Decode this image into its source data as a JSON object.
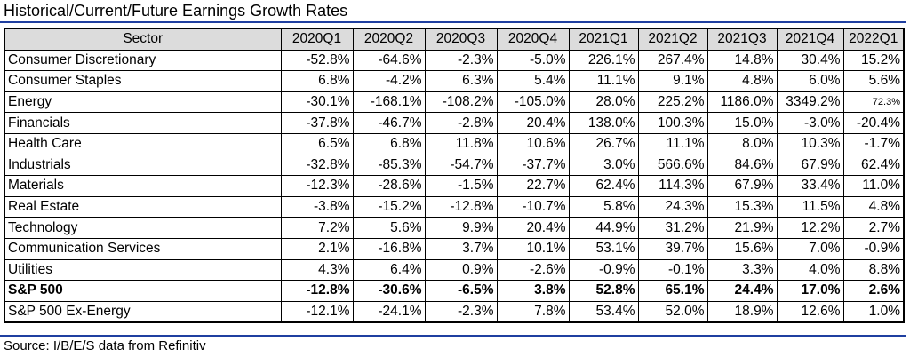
{
  "title": "Historical/Current/Future Earnings Growth Rates",
  "source": "Source: I/B/E/S data from Refinitiv",
  "colors": {
    "rule": "#1f3fa0",
    "header_bg": "#dcdcdc"
  },
  "table": {
    "columns": [
      "Sector",
      "2020Q1",
      "2020Q2",
      "2020Q3",
      "2020Q4",
      "2021Q1",
      "2021Q2",
      "2021Q3",
      "2021Q4",
      "2022Q1"
    ],
    "rows": [
      {
        "sector": "Consumer Discretionary",
        "values": [
          "-52.8%",
          "-64.6%",
          "-2.3%",
          "-5.0%",
          "226.1%",
          "267.4%",
          "14.8%",
          "30.4%",
          "15.2%"
        ]
      },
      {
        "sector": "Consumer Staples",
        "values": [
          "6.8%",
          "-4.2%",
          "6.3%",
          "5.4%",
          "11.1%",
          "9.1%",
          "4.8%",
          "6.0%",
          "5.6%"
        ]
      },
      {
        "sector": "Energy",
        "values": [
          "-30.1%",
          "-168.1%",
          "-108.2%",
          "-105.0%",
          "28.0%",
          "225.2%",
          "1186.0%",
          "3349.2%",
          "72.3%"
        ]
      },
      {
        "sector": "Financials",
        "values": [
          "-37.8%",
          "-46.7%",
          "-2.8%",
          "20.4%",
          "138.0%",
          "100.3%",
          "15.0%",
          "-3.0%",
          "-20.4%"
        ]
      },
      {
        "sector": "Health Care",
        "values": [
          "6.5%",
          "6.8%",
          "11.8%",
          "10.6%",
          "26.7%",
          "11.1%",
          "8.0%",
          "10.3%",
          "-1.7%"
        ]
      },
      {
        "sector": "Industrials",
        "values": [
          "-32.8%",
          "-85.3%",
          "-54.7%",
          "-37.7%",
          "3.0%",
          "566.6%",
          "84.6%",
          "67.9%",
          "62.4%"
        ]
      },
      {
        "sector": "Materials",
        "values": [
          "-12.3%",
          "-28.6%",
          "-1.5%",
          "22.7%",
          "62.4%",
          "114.3%",
          "67.9%",
          "33.4%",
          "11.0%"
        ]
      },
      {
        "sector": "Real Estate",
        "values": [
          "-3.8%",
          "-15.2%",
          "-12.8%",
          "-10.7%",
          "5.8%",
          "24.3%",
          "15.3%",
          "11.5%",
          "4.8%"
        ]
      },
      {
        "sector": "Technology",
        "values": [
          "7.2%",
          "5.6%",
          "9.9%",
          "20.4%",
          "44.9%",
          "31.2%",
          "21.9%",
          "12.2%",
          "2.7%"
        ]
      },
      {
        "sector": "Communication Services",
        "values": [
          "2.1%",
          "-16.8%",
          "3.7%",
          "10.1%",
          "53.1%",
          "39.7%",
          "15.6%",
          "7.0%",
          "-0.9%"
        ]
      },
      {
        "sector": "Utilities",
        "values": [
          "4.3%",
          "6.4%",
          "0.9%",
          "-2.6%",
          "-0.9%",
          "-0.1%",
          "3.3%",
          "4.0%",
          "8.8%"
        ]
      },
      {
        "sector": "S&P 500",
        "values": [
          "-12.8%",
          "-30.6%",
          "-6.5%",
          "3.8%",
          "52.8%",
          "65.1%",
          "24.4%",
          "17.0%",
          "2.6%"
        ]
      },
      {
        "sector": "S&P 500 Ex-Energy",
        "values": [
          "-12.1%",
          "-24.1%",
          "-2.3%",
          "7.8%",
          "53.4%",
          "52.0%",
          "18.9%",
          "12.6%",
          "1.0%"
        ]
      }
    ]
  }
}
